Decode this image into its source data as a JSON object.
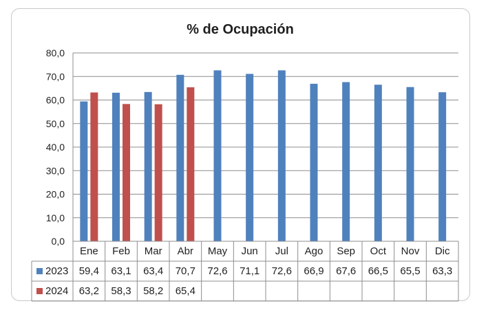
{
  "chart_data": {
    "type": "bar",
    "title": "% de Ocupación",
    "categories": [
      "Ene",
      "Feb",
      "Mar",
      "Abr",
      "May",
      "Jun",
      "Jul",
      "Ago",
      "Sep",
      "Oct",
      "Nov",
      "Dic"
    ],
    "series": [
      {
        "name": "2023",
        "color": "#4f81bd",
        "values": [
          59.4,
          63.1,
          63.4,
          70.7,
          72.6,
          71.1,
          72.6,
          66.9,
          67.6,
          66.5,
          65.5,
          63.3
        ]
      },
      {
        "name": "2024",
        "color": "#c0504d",
        "values": [
          63.2,
          58.3,
          58.2,
          65.4,
          null,
          null,
          null,
          null,
          null,
          null,
          null,
          null
        ]
      }
    ],
    "value_labels": [
      [
        "59,4",
        "63,1",
        "63,4",
        "70,7",
        "72,6",
        "71,1",
        "72,6",
        "66,9",
        "67,6",
        "66,5",
        "65,5",
        "63,3"
      ],
      [
        "63,2",
        "58,3",
        "58,2",
        "65,4",
        "",
        "",
        "",
        "",
        "",
        "",
        "",
        ""
      ]
    ],
    "ylim": [
      0,
      80
    ],
    "yticks": [
      "0,0",
      "10,0",
      "20,0",
      "30,0",
      "40,0",
      "50,0",
      "60,0",
      "70,0",
      "80,0"
    ],
    "grid": true,
    "legend": "data-table"
  }
}
